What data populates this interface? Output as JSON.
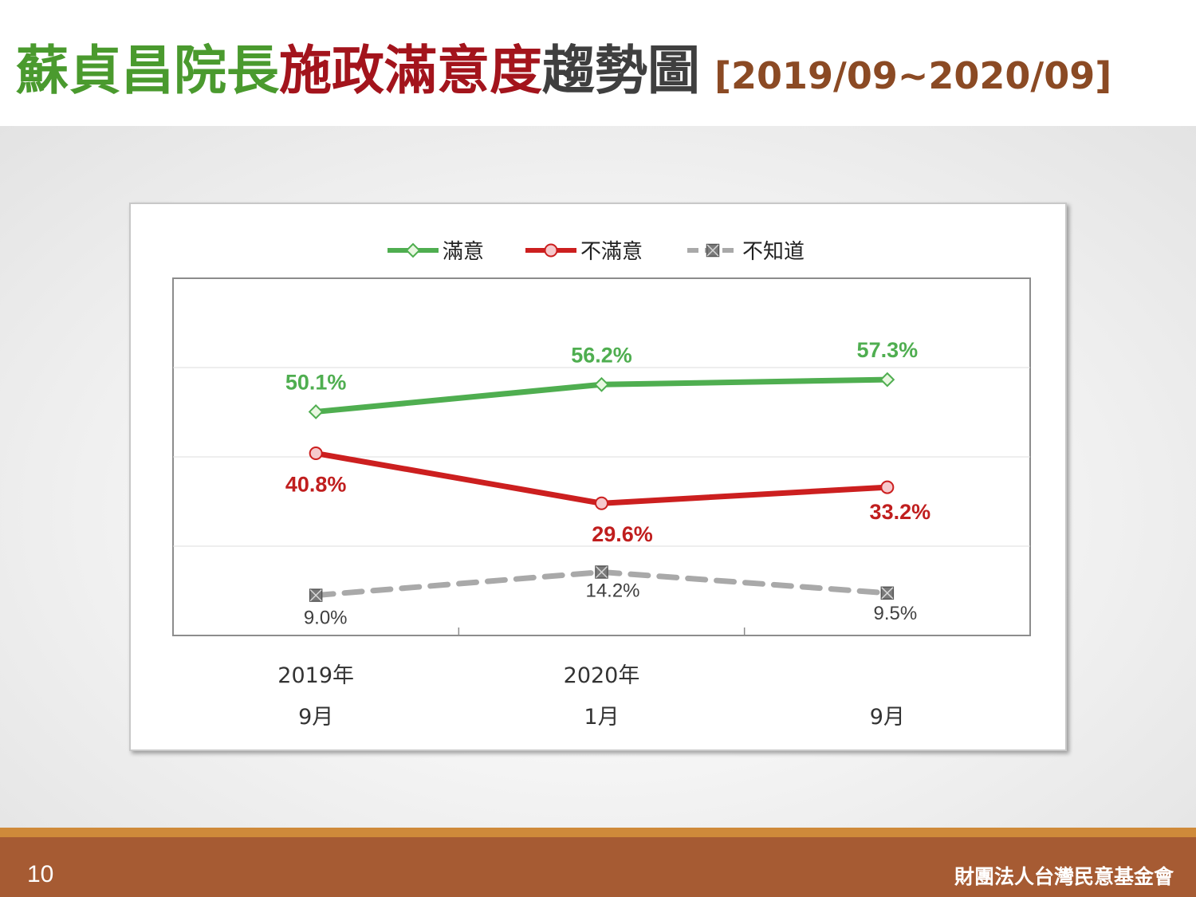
{
  "slide": {
    "title_part1": "蘇貞昌院長",
    "title_part2": "施政滿意度",
    "title_part3": "趨勢圖",
    "title_period": "[2019/09~2020/09]",
    "page_number": "10",
    "organization": "財團法人台灣民意基金會"
  },
  "colors": {
    "title_green": "#4a9a2e",
    "title_red": "#a3141c",
    "title_gray": "#3f3f3f",
    "title_brown": "#8b4a24",
    "footer_bg": "#a65b33",
    "footer_stripe": "#cf8a3a"
  },
  "chart_data": {
    "type": "line",
    "categories": [
      {
        "year": "2019年",
        "month": "9月"
      },
      {
        "year": "2020年",
        "month": "1月"
      },
      {
        "year": "",
        "month": "9月"
      }
    ],
    "series": [
      {
        "name": "滿意",
        "values": [
          50.1,
          56.2,
          57.3
        ],
        "labels": [
          "50.1%",
          "56.2%",
          "57.3%"
        ],
        "color": "#4fae50",
        "label_color": "#4fae50",
        "marker": "diamond",
        "dashed": false
      },
      {
        "name": "不滿意",
        "values": [
          40.8,
          29.6,
          33.2
        ],
        "labels": [
          "40.8%",
          "29.6%",
          "33.2%"
        ],
        "color": "#cc1f1f",
        "label_color": "#c01e1e",
        "marker": "circle",
        "dashed": false
      },
      {
        "name": "不知道",
        "values": [
          9.0,
          14.2,
          9.5
        ],
        "labels": [
          "9.0%",
          "14.2%",
          "9.5%"
        ],
        "color": "#a9a9a9",
        "label_color": "#404040",
        "marker": "square-x",
        "dashed": true
      }
    ],
    "ylim": [
      0,
      80
    ],
    "grid": true,
    "legend_position": "top"
  }
}
